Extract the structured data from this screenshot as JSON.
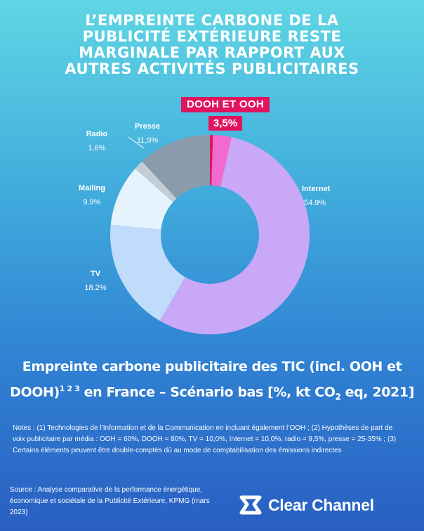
{
  "headline": {
    "lines": [
      "L’EMPREINTE CARBONE DE LA",
      "PUBLICITÉ EXTÉRIEURE RESTE",
      "MARGINALE PAR RAPPORT AUX",
      "AUTRES ACTIVITÉS PUBLICITAIRES"
    ]
  },
  "callout": {
    "label": "DOOH ET OOH",
    "value": "3,5%"
  },
  "chart_data": {
    "type": "pie",
    "title": "Empreinte carbone publicitaire des TIC (incl. OOH et DOOH) en France – Scénario bas [%, kt CO2 eq, 2021]",
    "slices": [
      {
        "name": "DOOH",
        "value": 0.5,
        "color": "#e0155e"
      },
      {
        "name": "OOH",
        "value": 3.0,
        "color": "#f06ad0"
      },
      {
        "name": "Internet",
        "value": 54.9,
        "label": "54.9%",
        "color": "#c9a9f7"
      },
      {
        "name": "TV",
        "value": 18.2,
        "label": "18.2%",
        "color": "#c0dcfa"
      },
      {
        "name": "Mailing",
        "value": 9.9,
        "label": "9.9%",
        "color": "#e6f3fc"
      },
      {
        "name": "Radio",
        "value": 1.6,
        "label": "1,6%",
        "color": "#c3cdd6"
      },
      {
        "name": "Presse",
        "value": 11.9,
        "label": "11,9%",
        "color": "#8a9bab"
      }
    ],
    "start_at": "top",
    "direction": "clockwise",
    "donut": true
  },
  "caption": {
    "part1": "Empreinte carbone publicitaire des TIC (incl. OOH et",
    "part2": "DOOH)",
    "sup": "1 2 3",
    "part3": " en France – Scénario bas [%, kt CO",
    "sub": "2",
    "part4": " eq, 2021]"
  },
  "notes": "Notes : (1) Technologies de l’Information et de la Communication en incluant également l’OOH ; (2) Hypothèses de part de voix publicitaire par média : OOH = 60%, DOOH = 80%, TV = 10,0%, Internet = 10,0%, radio = 9,5%, presse = 25-35% ; (3) Certains éléments peuvent être double-comptés dû au mode de comptabilisation des émissions indirectes",
  "source": "Source : Analyse comparative de la performance énergétique, économique et sociétale de la Publicité Extérieure, KPMG (mars 2023)",
  "brand": {
    "name": "Clear Channel",
    "logo_icon": "clear-channel-logo-icon"
  }
}
